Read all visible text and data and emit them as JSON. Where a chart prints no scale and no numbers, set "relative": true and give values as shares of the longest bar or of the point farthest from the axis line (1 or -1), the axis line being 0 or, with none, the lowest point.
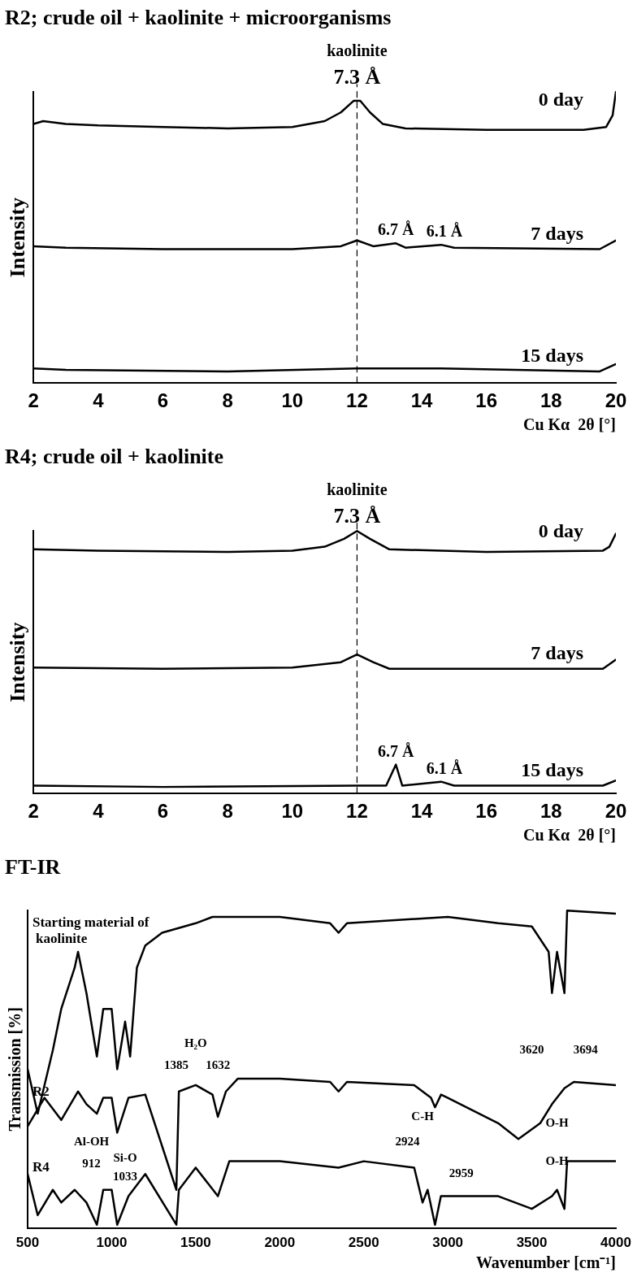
{
  "chart_data": [
    {
      "type": "line",
      "title": "R2; crude oil + kaolinite + microorganisms",
      "xlabel": "Cu Kα  2θ [°]",
      "ylabel": "Intensity",
      "relative": true,
      "xlim": [
        2,
        20
      ],
      "xticks": [
        2,
        4,
        6,
        8,
        10,
        12,
        14,
        16,
        18,
        20
      ],
      "ref_lines": [
        {
          "axis": "x",
          "value": 12,
          "color": "#000000",
          "line_style": "dashed"
        }
      ],
      "annotations": [
        {
          "text": "7.3 Å",
          "x": 12,
          "y": 1
        },
        {
          "text": "kaolinite",
          "x": 12,
          "y": 1
        },
        {
          "text": "6.7 Å",
          "x": 13.2,
          "y": 0.48
        },
        {
          "text": "6.1 Å",
          "x": 14.7,
          "y": 0.475
        }
      ],
      "series": [
        {
          "name": "0 day",
          "color": "#000000",
          "x": [
            2,
            2.3,
            3,
            4,
            6,
            8,
            10,
            11,
            11.5,
            11.9,
            12.1,
            12.4,
            12.8,
            13.5,
            16,
            19,
            19.7,
            19.9,
            20
          ],
          "values": [
            0.89,
            0.9,
            0.89,
            0.885,
            0.88,
            0.875,
            0.88,
            0.9,
            0.93,
            0.97,
            0.97,
            0.93,
            0.89,
            0.875,
            0.87,
            0.87,
            0.88,
            0.92,
            1
          ]
        },
        {
          "name": "7 days",
          "color": "#000000",
          "x": [
            2,
            3,
            6,
            10,
            11.5,
            12,
            12.5,
            13.2,
            13.5,
            14.6,
            15,
            19.5,
            20
          ],
          "values": [
            0.47,
            0.465,
            0.46,
            0.46,
            0.47,
            0.49,
            0.47,
            0.48,
            0.465,
            0.475,
            0.465,
            0.46,
            0.49
          ]
        },
        {
          "name": "15 days",
          "color": "#000000",
          "x": [
            2,
            3,
            8,
            12,
            14.6,
            19.5,
            20
          ],
          "values": [
            0.05,
            0.045,
            0.04,
            0.05,
            0.05,
            0.04,
            0.065
          ]
        }
      ]
    },
    {
      "type": "line",
      "title": "R4; crude oil + kaolinite",
      "xlabel": "Cu Kα  2θ [°]",
      "ylabel": "Intensity",
      "relative": true,
      "xlim": [
        2,
        20
      ],
      "xticks": [
        2,
        4,
        6,
        8,
        10,
        12,
        14,
        16,
        18,
        20
      ],
      "ref_lines": [
        {
          "axis": "x",
          "value": 12,
          "color": "#000000",
          "line_style": "dashed"
        }
      ],
      "annotations": [
        {
          "text": "7.3 Å",
          "x": 12,
          "y": 1
        },
        {
          "text": "kaolinite",
          "x": 12,
          "y": 1
        },
        {
          "text": "6.7 Å",
          "x": 13.2,
          "y": 0.11
        },
        {
          "text": "6.1 Å",
          "x": 14.7,
          "y": 0.045
        }
      ],
      "series": [
        {
          "name": "0 day",
          "color": "#000000",
          "x": [
            2,
            4,
            8,
            10,
            11,
            11.6,
            12,
            12.4,
            13,
            16,
            19.6,
            19.8,
            20
          ],
          "values": [
            0.93,
            0.925,
            0.92,
            0.925,
            0.94,
            0.97,
            1,
            0.97,
            0.93,
            0.92,
            0.925,
            0.94,
            0.99
          ]
        },
        {
          "name": "7 days",
          "color": "#000000",
          "x": [
            2,
            6,
            10,
            11.5,
            12,
            12.5,
            13,
            19.6,
            20
          ],
          "values": [
            0.48,
            0.475,
            0.48,
            0.5,
            0.53,
            0.5,
            0.475,
            0.475,
            0.51
          ]
        },
        {
          "name": "15 days",
          "color": "#000000",
          "x": [
            2,
            6,
            12,
            12.9,
            13.2,
            13.4,
            14.6,
            15,
            19.6,
            20
          ],
          "values": [
            0.03,
            0.025,
            0.03,
            0.03,
            0.11,
            0.03,
            0.045,
            0.03,
            0.03,
            0.05
          ]
        }
      ]
    },
    {
      "type": "line",
      "title": "FT-IR",
      "xlabel": "Wavenumber [cm⁻¹]",
      "ylabel": "Transmission [%]",
      "relative": true,
      "xlim": [
        500,
        4000
      ],
      "xticks": [
        500,
        1000,
        1500,
        2000,
        2500,
        3000,
        3500,
        4000
      ],
      "annotations": [
        "1385",
        "1632",
        "H₂O",
        "3620",
        "3694",
        "O-H",
        "912",
        "Al-OH",
        "1033",
        "Si-O",
        "2924",
        "2959",
        "C-H",
        "O-H"
      ],
      "series": [
        {
          "name": "Starting material of kaolinite",
          "color": "#000000",
          "x": [
            500,
            560,
            650,
            700,
            780,
            800,
            850,
            912,
            950,
            1000,
            1033,
            1080,
            1110,
            1150,
            1200,
            1300,
            1500,
            1600,
            2000,
            2300,
            2350,
            2400,
            3000,
            3300,
            3500,
            3600,
            3620,
            3650,
            3694,
            3710,
            4000
          ],
          "values": [
            0.5,
            0.36,
            0.56,
            0.69,
            0.82,
            0.87,
            0.74,
            0.54,
            0.69,
            0.69,
            0.5,
            0.65,
            0.54,
            0.82,
            0.89,
            0.93,
            0.96,
            0.98,
            0.98,
            0.96,
            0.93,
            0.96,
            0.98,
            0.96,
            0.95,
            0.87,
            0.74,
            0.87,
            0.74,
            1,
            0.99
          ]
        },
        {
          "name": "R2",
          "color": "#000000",
          "x": [
            500,
            600,
            700,
            800,
            850,
            912,
            950,
            1000,
            1033,
            1100,
            1200,
            1385,
            1400,
            1500,
            1600,
            1632,
            1680,
            1750,
            2000,
            2300,
            2350,
            2400,
            2800,
            2900,
            2924,
            2960,
            3000,
            3300,
            3420,
            3550,
            3620,
            3694,
            3750,
            4000
          ],
          "values": [
            0.32,
            0.41,
            0.34,
            0.43,
            0.39,
            0.36,
            0.41,
            0.41,
            0.3,
            0.41,
            0.42,
            0.12,
            0.43,
            0.45,
            0.42,
            0.35,
            0.43,
            0.47,
            0.47,
            0.46,
            0.43,
            0.46,
            0.45,
            0.41,
            0.38,
            0.42,
            0.41,
            0.33,
            0.28,
            0.33,
            0.39,
            0.44,
            0.46,
            0.45
          ]
        },
        {
          "name": "R4",
          "color": "#000000",
          "x": [
            500,
            560,
            650,
            700,
            780,
            850,
            912,
            950,
            1000,
            1033,
            1100,
            1200,
            1385,
            1400,
            1500,
            1632,
            1700,
            2000,
            2350,
            2500,
            2800,
            2850,
            2880,
            2924,
            2959,
            3000,
            3300,
            3500,
            3620,
            3650,
            3694,
            3710,
            4000
          ],
          "values": [
            0.17,
            0.04,
            0.12,
            0.08,
            0.12,
            0.08,
            0.01,
            0.12,
            0.12,
            0.01,
            0.1,
            0.17,
            0.01,
            0.12,
            0.19,
            0.1,
            0.21,
            0.21,
            0.19,
            0.21,
            0.19,
            0.08,
            0.12,
            0.01,
            0.1,
            0.1,
            0.1,
            0.06,
            0.1,
            0.12,
            0.06,
            0.21,
            0.21
          ]
        }
      ]
    }
  ]
}
